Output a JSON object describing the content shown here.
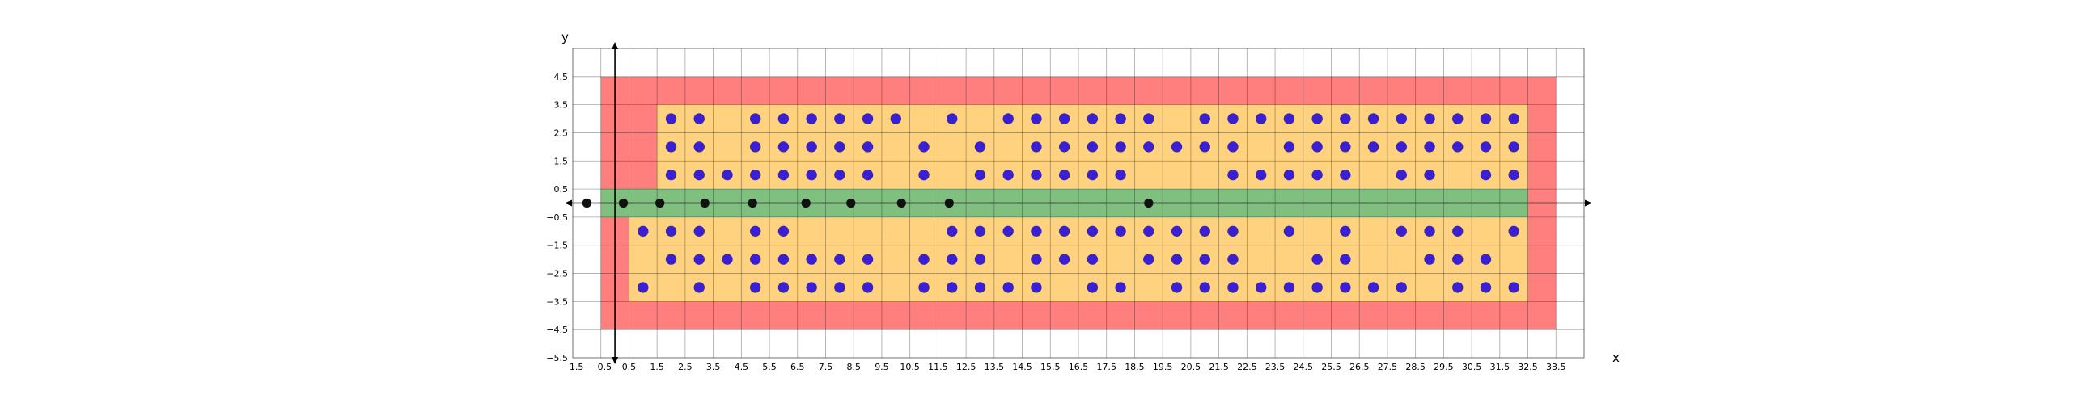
{
  "chart_data": {
    "type": "scatter",
    "title": "",
    "xlabel": "x",
    "ylabel": "y",
    "xlim": [
      -1.5,
      34.5
    ],
    "ylim": [
      -5.5,
      5.5
    ],
    "grid": true,
    "xticks": [
      -1.5,
      -0.5,
      0.5,
      1.5,
      2.5,
      3.5,
      4.5,
      5.5,
      6.5,
      7.5,
      8.5,
      9.5,
      10.5,
      11.5,
      12.5,
      13.5,
      14.5,
      15.5,
      16.5,
      17.5,
      18.5,
      19.5,
      20.5,
      21.5,
      22.5,
      23.5,
      24.5,
      25.5,
      26.5,
      27.5,
      28.5,
      29.5,
      30.5,
      31.5,
      32.5,
      33.5
    ],
    "yticks": [
      4.5,
      3.5,
      2.5,
      1.5,
      0.5,
      -0.5,
      -1.5,
      -2.5,
      -3.5,
      -4.5,
      -5.5
    ],
    "xtick_labels": [
      "−1.5",
      "−0.5",
      "0.5",
      "1.5",
      "2.5",
      "3.5",
      "4.5",
      "5.5",
      "6.5",
      "7.5",
      "8.5",
      "9.5",
      "10.5",
      "11.5",
      "12.5",
      "13.5",
      "14.5",
      "15.5",
      "16.5",
      "17.5",
      "18.5",
      "19.5",
      "20.5",
      "21.5",
      "22.5",
      "23.5",
      "24.5",
      "25.5",
      "26.5",
      "27.5",
      "28.5",
      "29.5",
      "30.5",
      "31.5",
      "32.5",
      "33.5"
    ],
    "ytick_labels": [
      "4.5",
      "3.5",
      "2.5",
      "1.5",
      "0.5",
      "−0.5",
      "−1.5",
      "−2.5",
      "−3.5",
      "−4.5",
      "−5.5"
    ],
    "regions": [
      {
        "color": "#ff7f7f",
        "x0": -0.5,
        "x1": 33.5,
        "y0": -4.5,
        "y1": 4.5
      },
      {
        "color": "#ffd27f",
        "x0": 1.5,
        "x1": 32.5,
        "y0": 0.5,
        "y1": 3.5
      },
      {
        "color": "#ffd27f",
        "x0": 0.5,
        "x1": 32.5,
        "y0": -3.5,
        "y1": -0.5
      },
      {
        "color": "#7fbf7f",
        "x0": -0.5,
        "x1": 32.5,
        "y0": -0.5,
        "y1": 0.5
      }
    ],
    "series": [
      {
        "color": "#3a1fd6",
        "rows": [
          {
            "y": 3,
            "x": [
              2,
              3,
              5,
              6,
              7,
              8,
              9,
              10,
              12,
              14,
              15,
              16,
              17,
              18,
              19,
              21,
              22,
              23,
              24,
              25,
              26,
              27,
              28,
              29,
              30,
              31,
              32
            ]
          },
          {
            "y": 2,
            "x": [
              2,
              3,
              5,
              6,
              7,
              8,
              9,
              11,
              13,
              15,
              16,
              17,
              18,
              19,
              20,
              21,
              22,
              24,
              25,
              26,
              27,
              28,
              29,
              30,
              31,
              32
            ]
          },
          {
            "y": 1,
            "x": [
              2,
              3,
              4,
              5,
              6,
              7,
              8,
              9,
              11,
              13,
              14,
              15,
              16,
              17,
              18,
              22,
              23,
              24,
              25,
              26,
              28,
              29,
              31,
              32
            ]
          },
          {
            "y": -1,
            "x": [
              1,
              2,
              3,
              5,
              6,
              12,
              13,
              14,
              15,
              16,
              17,
              18,
              19,
              20,
              21,
              22,
              24,
              26,
              28,
              29,
              30,
              32
            ]
          },
          {
            "y": -2,
            "x": [
              2,
              3,
              4,
              5,
              6,
              7,
              8,
              9,
              11,
              12,
              13,
              15,
              16,
              17,
              19,
              20,
              21,
              22,
              25,
              26,
              29,
              30,
              31
            ]
          },
          {
            "y": -3,
            "x": [
              1,
              3,
              5,
              6,
              7,
              8,
              9,
              11,
              12,
              13,
              14,
              15,
              17,
              18,
              20,
              21,
              22,
              23,
              24,
              25,
              26,
              27,
              28,
              30,
              31,
              32
            ]
          }
        ]
      },
      {
        "color": "#111111",
        "rows": [
          {
            "y": 0,
            "x": [
              -1,
              0.3,
              1.6,
              3.2,
              4.9,
              6.8,
              8.4,
              10.2,
              11.9,
              19
            ]
          }
        ]
      }
    ]
  }
}
